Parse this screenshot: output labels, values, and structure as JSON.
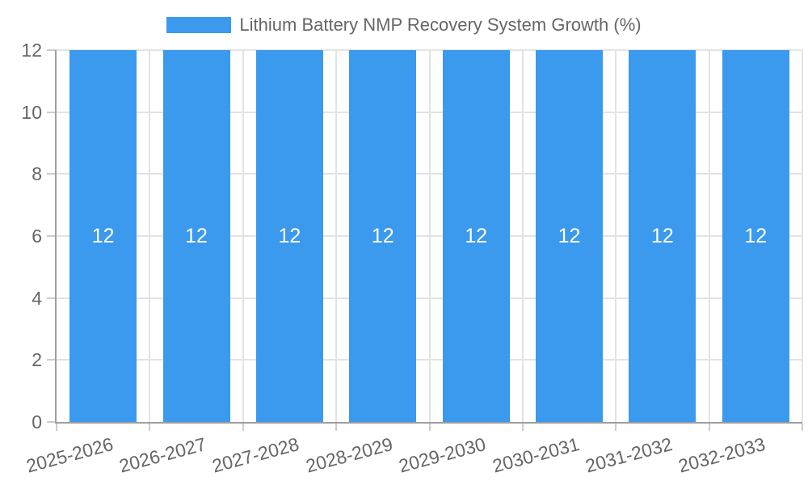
{
  "chart_data": {
    "type": "bar",
    "title": "Lithium Battery NMP Recovery System Growth (%)",
    "legend_position": "top",
    "categories": [
      "2025-2026",
      "2026-2027",
      "2027-2028",
      "2028-2029",
      "2029-2030",
      "2030-2031",
      "2031-2032",
      "2032-2033"
    ],
    "values": [
      12,
      12,
      12,
      12,
      12,
      12,
      12,
      12
    ],
    "value_label_format": "inside-center",
    "xlabel": "",
    "ylabel": "",
    "y_ticks": [
      0,
      2,
      4,
      6,
      8,
      10,
      12
    ],
    "ylim": [
      0,
      12
    ],
    "grid": true,
    "colors": {
      "bar": "#3b99ee",
      "grid": "#e3e3e3",
      "axis": "#9e9e9e",
      "tick_mark": "#cccccc",
      "axis_label": "#666666",
      "bar_value_label": "#ffffff",
      "legend_text": "#666666"
    }
  }
}
